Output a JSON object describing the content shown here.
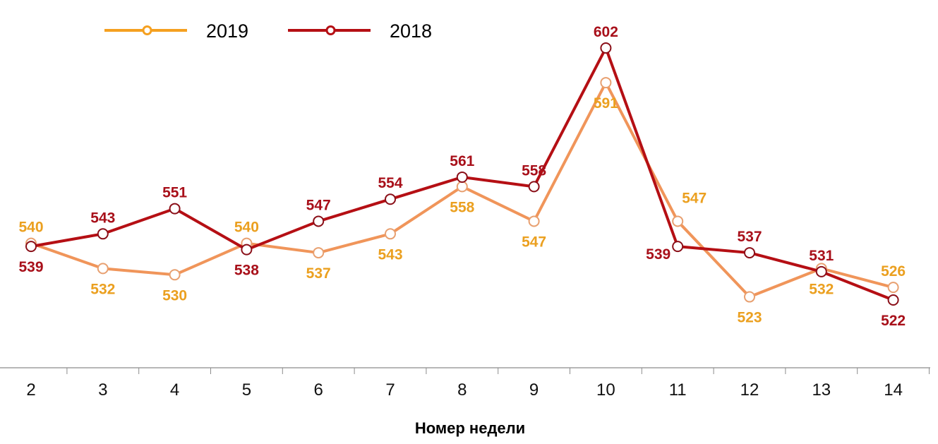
{
  "colors": {
    "series_2019_line": "#F0955A",
    "series_2019_label": "#EBA020",
    "series_2019_legend": "#F5A020",
    "series_2018_line": "#B50F14",
    "series_2018_label": "#A8101A",
    "axis": "#8c8c8c"
  },
  "legend": [
    {
      "name": "2019",
      "series_index": 0
    },
    {
      "name": "2018",
      "series_index": 1
    }
  ],
  "chart_data": {
    "type": "line",
    "title": "",
    "xlabel": "Номер недели",
    "ylabel": "",
    "categories": [
      "2",
      "3",
      "4",
      "5",
      "6",
      "7",
      "8",
      "9",
      "10",
      "11",
      "12",
      "13",
      "14"
    ],
    "series": [
      {
        "name": "2019",
        "values": [
          540,
          532,
          530,
          540,
          537,
          543,
          558,
          547,
          591,
          547,
          523,
          532,
          526
        ],
        "label_pos": [
          "above",
          "below",
          "below",
          "above",
          "below",
          "below",
          "below",
          "below",
          "below",
          "above-right",
          "below",
          "below",
          "above"
        ]
      },
      {
        "name": "2018",
        "values": [
          539,
          543,
          551,
          538,
          547,
          554,
          561,
          558,
          602,
          539,
          537,
          531,
          522
        ],
        "label_pos": [
          "below",
          "above",
          "above",
          "below",
          "above",
          "above",
          "above",
          "above",
          "above",
          "left",
          "above",
          "above",
          "below"
        ]
      }
    ],
    "legend_position": "top-left",
    "grid": false,
    "markers": "hollow-circle",
    "y_axis_visible": false,
    "data_labels": true
  }
}
